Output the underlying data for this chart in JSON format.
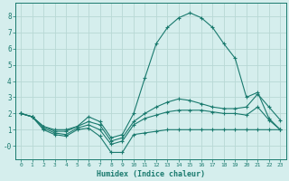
{
  "xlabel": "Humidex (Indice chaleur)",
  "x": [
    0,
    1,
    2,
    3,
    4,
    5,
    6,
    7,
    8,
    9,
    10,
    11,
    12,
    13,
    14,
    15,
    16,
    17,
    18,
    19,
    20,
    21,
    22,
    23
  ],
  "line1": [
    2.0,
    1.8,
    1.0,
    0.7,
    0.6,
    1.0,
    1.1,
    0.6,
    -0.4,
    -0.4,
    0.7,
    0.8,
    0.9,
    1.0,
    1.0,
    1.0,
    1.0,
    1.0,
    1.0,
    1.0,
    1.0,
    1.0,
    1.0,
    1.0
  ],
  "line2": [
    2.0,
    1.8,
    1.1,
    0.8,
    0.7,
    1.1,
    1.3,
    1.0,
    0.1,
    0.3,
    1.3,
    1.7,
    1.9,
    2.1,
    2.2,
    2.2,
    2.2,
    2.1,
    2.0,
    2.0,
    1.9,
    2.4,
    1.6,
    1.0
  ],
  "line3": [
    2.0,
    1.8,
    1.2,
    0.9,
    0.9,
    1.2,
    1.5,
    1.3,
    0.3,
    0.5,
    1.5,
    2.0,
    2.4,
    2.7,
    2.9,
    2.8,
    2.6,
    2.4,
    2.3,
    2.3,
    2.4,
    3.2,
    2.4,
    1.6
  ],
  "line4": [
    2.0,
    1.8,
    1.2,
    1.0,
    1.0,
    1.2,
    1.8,
    1.5,
    0.5,
    0.7,
    2.0,
    4.2,
    6.3,
    7.3,
    7.9,
    8.2,
    7.9,
    7.3,
    6.3,
    5.4,
    3.0,
    3.3,
    1.7,
    1.0
  ],
  "line_color": "#1a7a6e",
  "bg_color": "#d5eeed",
  "grid_color": "#b8d8d5",
  "ylim": [
    -0.8,
    8.8
  ],
  "yticks": [
    0,
    1,
    2,
    3,
    4,
    5,
    6,
    7,
    8
  ],
  "ytick_labels": [
    "-0",
    "1",
    "2",
    "3",
    "4",
    "5",
    "6",
    "7",
    "8"
  ]
}
